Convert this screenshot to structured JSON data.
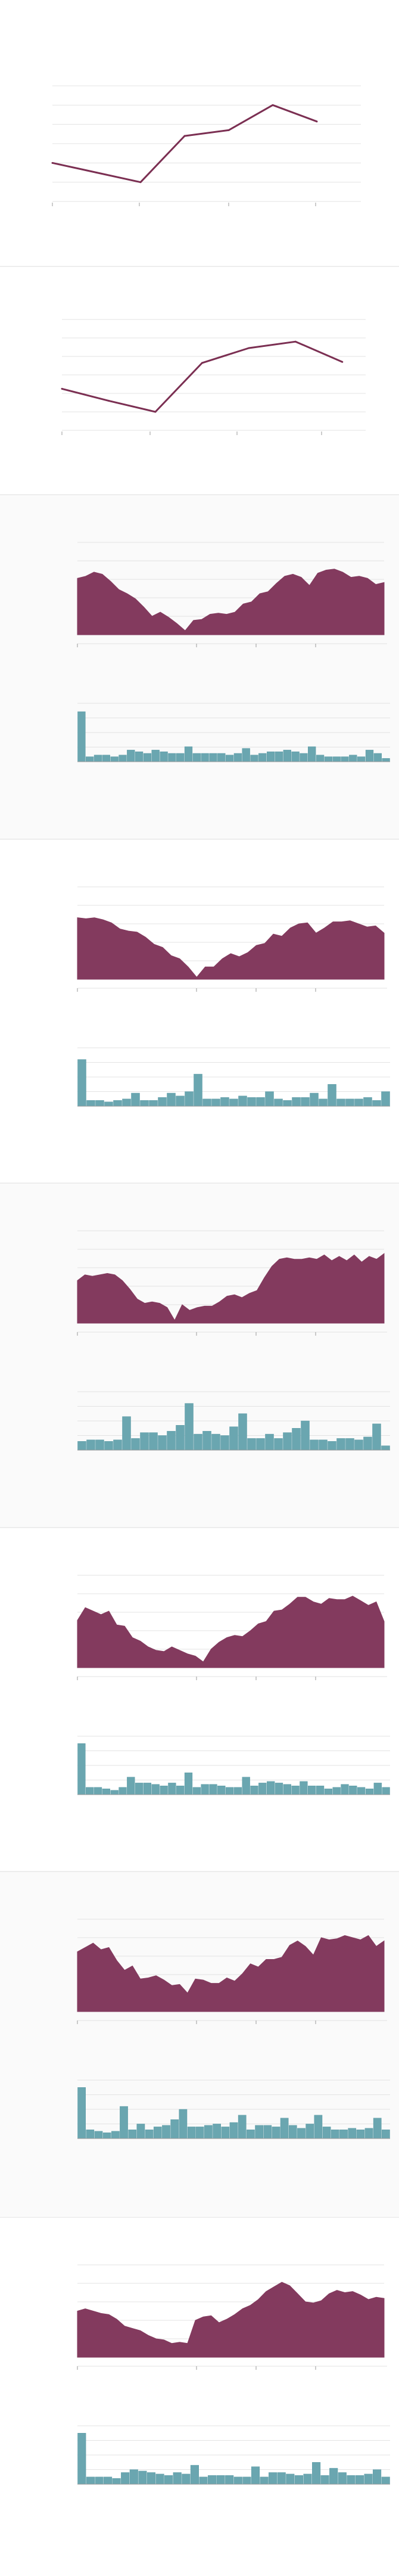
{
  "colors": {
    "line": "#7b2f52",
    "area": "#833a5e",
    "bar": "#6aa6b0",
    "bar_stroke": "#5a9aa5"
  },
  "chart_data": [
    {
      "type": "line",
      "x": [
        0,
        1,
        2,
        3,
        4,
        5,
        6
      ],
      "values": [
        40,
        30,
        20,
        68,
        74,
        100,
        83
      ],
      "xlim": [
        0,
        7
      ],
      "ylim": [
        0,
        120
      ],
      "grid": true,
      "legend": "none"
    },
    {
      "type": "line",
      "x": [
        0,
        1,
        2,
        3,
        4,
        5,
        6
      ],
      "values": [
        45,
        32,
        20,
        73,
        89,
        96,
        74
      ],
      "xlim": [
        0,
        6.5
      ],
      "ylim": [
        0,
        120
      ],
      "grid": true,
      "legend": "none"
    },
    {
      "type": "area",
      "values": [
        55,
        57,
        61,
        59,
        52,
        44,
        40,
        35,
        27,
        18,
        22,
        17,
        11,
        4,
        14,
        15,
        20,
        21,
        20,
        22,
        30,
        32,
        40,
        42,
        50,
        57,
        59,
        56,
        48,
        60,
        63,
        64,
        61,
        56,
        57,
        55,
        49,
        51
      ],
      "ylim": [
        0,
        90
      ],
      "grid": true,
      "legend": "none"
    },
    {
      "type": "bar",
      "values": [
        30,
        3,
        4,
        4,
        3,
        4,
        7,
        6,
        5,
        7,
        6,
        5,
        5,
        9,
        5,
        5,
        5,
        5,
        4,
        5,
        8,
        4,
        5,
        6,
        6,
        7,
        6,
        5,
        9,
        4,
        3,
        3,
        3,
        4,
        3,
        7,
        5,
        2
      ],
      "ylim": [
        0,
        35
      ],
      "grid": true,
      "legend": "none"
    },
    {
      "type": "area",
      "values": [
        60,
        59,
        60,
        58,
        55,
        49,
        47,
        46,
        41,
        34,
        31,
        23,
        20,
        12,
        2,
        12,
        12,
        20,
        25,
        22,
        26,
        33,
        35,
        44,
        42,
        50,
        54,
        55,
        45,
        50,
        56,
        56,
        57,
        54,
        51,
        52,
        45
      ],
      "ylim": [
        0,
        90
      ],
      "grid": true,
      "legend": "none"
    },
    {
      "type": "bar",
      "values": [
        32,
        4,
        4,
        3,
        4,
        5,
        9,
        4,
        4,
        6,
        9,
        7,
        10,
        22,
        5,
        5,
        6,
        5,
        7,
        6,
        6,
        10,
        5,
        4,
        6,
        6,
        9,
        5,
        15,
        5,
        5,
        5,
        6,
        4,
        10
      ],
      "ylim": [
        0,
        40
      ],
      "grid": true,
      "legend": "none"
    },
    {
      "type": "area",
      "values": [
        30,
        34,
        33,
        34,
        35,
        34,
        30,
        24,
        17,
        14,
        15,
        14,
        11,
        2,
        13,
        9,
        11,
        12,
        12,
        15,
        19,
        20,
        18,
        21,
        23,
        32,
        40,
        45,
        46,
        45,
        45,
        46,
        45,
        48,
        44,
        47,
        44,
        48,
        43,
        47,
        45,
        49
      ],
      "ylim": [
        0,
        65
      ],
      "grid": true,
      "legend": "none"
    },
    {
      "type": "bar",
      "values": [
        6,
        7,
        7,
        6,
        7,
        23,
        8,
        12,
        12,
        10,
        13,
        17,
        32,
        11,
        13,
        11,
        10,
        16,
        25,
        8,
        8,
        11,
        8,
        12,
        15,
        20,
        7,
        7,
        6,
        8,
        8,
        7,
        9,
        18,
        3
      ],
      "ylim": [
        0,
        40
      ],
      "grid": true,
      "legend": "none"
    },
    {
      "type": "area",
      "values": [
        41,
        52,
        49,
        46,
        49,
        37,
        36,
        26,
        23,
        18,
        15,
        14,
        18,
        15,
        12,
        10,
        5,
        16,
        22,
        26,
        28,
        27,
        32,
        38,
        40,
        49,
        50,
        55,
        61,
        61,
        57,
        55,
        60,
        59,
        59,
        62,
        58,
        54,
        57,
        40
      ],
      "ylim": [
        0,
        80
      ],
      "grid": true,
      "legend": "none"
    },
    {
      "type": "bar",
      "values": [
        35,
        5,
        5,
        4,
        3,
        5,
        12,
        8,
        8,
        7,
        6,
        8,
        6,
        15,
        5,
        7,
        7,
        6,
        5,
        5,
        12,
        6,
        8,
        9,
        8,
        7,
        6,
        9,
        6,
        6,
        4,
        5,
        7,
        6,
        5,
        4,
        8,
        5
      ],
      "ylim": [
        0,
        40
      ],
      "grid": true,
      "legend": "none"
    },
    {
      "type": "area",
      "values": [
        55,
        59,
        63,
        57,
        59,
        47,
        38,
        42,
        30,
        31,
        33,
        29,
        24,
        25,
        17,
        30,
        29,
        26,
        26,
        31,
        28,
        35,
        44,
        41,
        48,
        48,
        50,
        61,
        65,
        60,
        52,
        68,
        66,
        67,
        70,
        68,
        66,
        70,
        60,
        65
      ],
      "ylim": [
        0,
        85
      ],
      "grid": true,
      "legend": "none"
    },
    {
      "type": "bar",
      "values": [
        35,
        6,
        5,
        4,
        5,
        22,
        6,
        10,
        6,
        8,
        9,
        13,
        20,
        8,
        8,
        9,
        10,
        8,
        11,
        16,
        6,
        9,
        9,
        8,
        14,
        9,
        7,
        10,
        16,
        8,
        6,
        6,
        7,
        6,
        7,
        14,
        6
      ],
      "ylim": [
        0,
        40
      ],
      "grid": true,
      "legend": "none"
    },
    {
      "type": "area",
      "values": [
        40,
        42,
        40,
        38,
        37,
        33,
        27,
        25,
        23,
        19,
        16,
        15,
        12,
        13,
        12,
        32,
        35,
        36,
        30,
        33,
        37,
        42,
        45,
        50,
        57,
        61,
        65,
        62,
        55,
        48,
        47,
        49,
        55,
        58,
        56,
        57,
        54,
        50,
        52,
        51
      ],
      "ylim": [
        0,
        80
      ],
      "grid": true,
      "legend": "none"
    },
    {
      "type": "bar",
      "values": [
        35,
        5,
        5,
        5,
        4,
        8,
        10,
        9,
        8,
        7,
        6,
        8,
        7,
        13,
        5,
        6,
        6,
        6,
        5,
        5,
        12,
        5,
        8,
        8,
        7,
        6,
        7,
        15,
        6,
        11,
        8,
        6,
        6,
        7,
        10,
        5
      ],
      "ylim": [
        0,
        40
      ],
      "grid": true,
      "legend": "none"
    }
  ]
}
